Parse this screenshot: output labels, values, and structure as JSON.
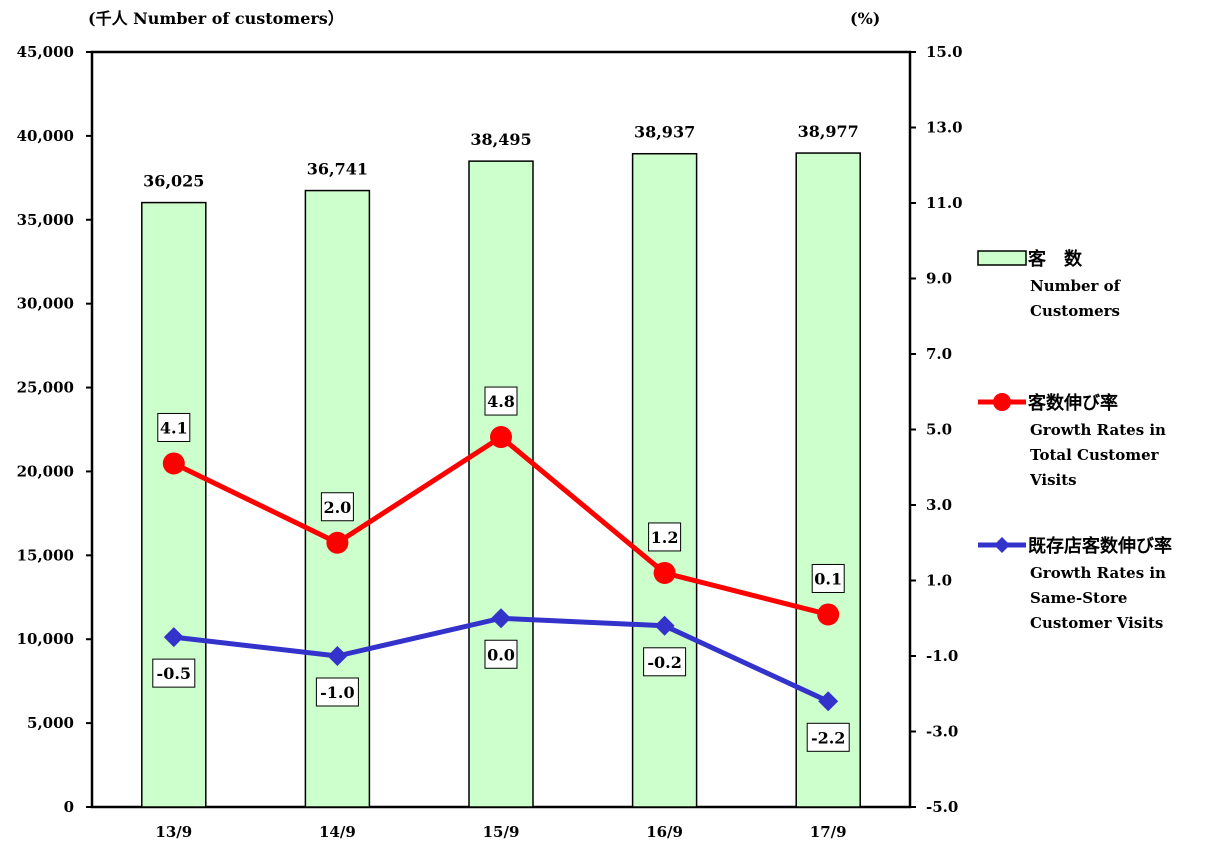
{
  "chart_data": {
    "type": "bar+line",
    "categories": [
      "13/9",
      "14/9",
      "15/9",
      "16/9",
      "17/9"
    ],
    "left_axis": {
      "title": "(千人 Number of customers）",
      "ylim": [
        0,
        45000
      ],
      "ticks": [
        "0",
        "5,000",
        "10,000",
        "15,000",
        "20,000",
        "25,000",
        "30,000",
        "35,000",
        "40,000",
        "45,000"
      ]
    },
    "right_axis": {
      "title": "(%)",
      "ylim": [
        -5.0,
        15.0
      ],
      "ticks": [
        "-5.0",
        "-3.0",
        "-1.0",
        "1.0",
        "3.0",
        "5.0",
        "7.0",
        "9.0",
        "11.0",
        "13.0",
        "15.0"
      ]
    },
    "series": [
      {
        "key": "customers",
        "kind": "bar",
        "axis": "left",
        "name_jp": "客　数",
        "name_en": "Number of Customers",
        "name_en_lines": [
          "Number of",
          "Customers"
        ],
        "color": "#ccffcc",
        "values": [
          36025,
          36741,
          38495,
          38937,
          38977
        ],
        "labels": [
          "36,025",
          "36,741",
          "38,495",
          "38,937",
          "38,977"
        ]
      },
      {
        "key": "growth_total",
        "kind": "line",
        "axis": "right",
        "marker": "circle",
        "name_jp": "客数伸び率",
        "name_en": "Growth Rates in Total Customer Visits",
        "name_en_lines": [
          "Growth Rates in",
          "Total Customer",
          "Visits"
        ],
        "color": "#ff0000",
        "values": [
          4.1,
          2.0,
          4.8,
          1.2,
          0.1
        ],
        "labels": [
          "4.1",
          "2.0",
          "4.8",
          "1.2",
          "0.1"
        ]
      },
      {
        "key": "growth_same_store",
        "kind": "line",
        "axis": "right",
        "marker": "diamond",
        "name_jp": "既存店客数伸び率",
        "name_en": "Growth Rates in Same-Store Customer Visits",
        "name_en_lines": [
          "Growth Rates in",
          "Same-Store",
          "Customer Visits"
        ],
        "color": "#3333cc",
        "values": [
          -0.5,
          -1.0,
          0.0,
          -0.2,
          -2.2
        ],
        "labels": [
          "-0.5",
          "-1.0",
          "0.0",
          "-0.2",
          "-2.2"
        ]
      }
    ],
    "legend_position": "right",
    "grid": false
  }
}
